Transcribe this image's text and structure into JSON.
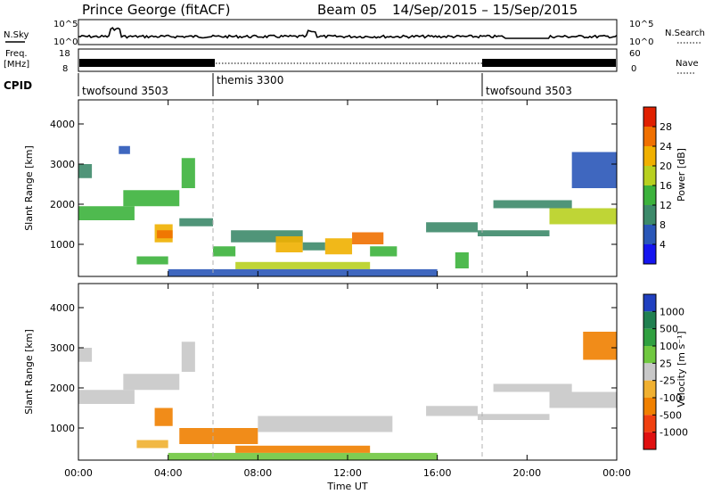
{
  "header": {
    "radar": "Prince George (fitACF)",
    "beam": "Beam 05",
    "date_range": "14/Sep/2015 – 15/Sep/2015"
  },
  "strip": {
    "nsky_label": "N.Sky",
    "nsearch_label": "N.Search",
    "noise_tick_top": "10^5",
    "noise_tick_bottom": "10^0",
    "freq_label_line1": "Freq.",
    "freq_label_line2": "[MHz]",
    "freq_tick_top": "18",
    "freq_tick_bottom": "8",
    "nave_tick_top": "60",
    "nave_tick_bottom": "0",
    "nave_label": "Nave",
    "cpid_label": "CPID",
    "cpid_segments": [
      {
        "name": "twofsound 3503",
        "start_hour": 0,
        "end_hour": 6
      },
      {
        "name": "themis 3300",
        "start_hour": 6,
        "end_hour": 18
      },
      {
        "name": "twofsound 3503",
        "start_hour": 18,
        "end_hour": 24
      }
    ]
  },
  "chart_data": [
    {
      "type": "heatmap",
      "title": "Power",
      "xlabel": "Time UT",
      "ylabel": "Slant Range [km]",
      "xlim": [
        0,
        24
      ],
      "ylim": [
        200,
        4600
      ],
      "x_ticks": [
        "00:00",
        "04:00",
        "08:00",
        "12:00",
        "16:00",
        "20:00",
        "00:00"
      ],
      "y_ticks": [
        1000,
        2000,
        3000,
        4000
      ],
      "colorbar": {
        "label": "Power [dB]",
        "ticks": [
          4,
          8,
          12,
          16,
          20,
          24,
          28
        ],
        "range": [
          0,
          32
        ],
        "colors": [
          "#1515f0",
          "#2a57b8",
          "#3d8a6a",
          "#3cb23c",
          "#b8d020",
          "#f0b000",
          "#f07000",
          "#e02000"
        ]
      },
      "regions": [
        {
          "x0": 0.0,
          "x1": 0.6,
          "y0": 2650,
          "y1": 3000,
          "value": 8
        },
        {
          "x0": 0.0,
          "x1": 2.5,
          "y0": 1600,
          "y1": 1950,
          "value": 14
        },
        {
          "x0": 2.0,
          "x1": 4.5,
          "y0": 1950,
          "y1": 2350,
          "value": 13
        },
        {
          "x0": 1.8,
          "x1": 2.3,
          "y0": 3250,
          "y1": 3450,
          "value": 6
        },
        {
          "x0": 3.4,
          "x1": 4.2,
          "y0": 1050,
          "y1": 1500,
          "value": 20
        },
        {
          "x0": 3.5,
          "x1": 4.2,
          "y0": 1150,
          "y1": 1350,
          "value": 27
        },
        {
          "x0": 2.6,
          "x1": 4.0,
          "y0": 500,
          "y1": 700,
          "value": 13
        },
        {
          "x0": 4.6,
          "x1": 5.2,
          "y0": 2400,
          "y1": 3150,
          "value": 12
        },
        {
          "x0": 4.5,
          "x1": 6.0,
          "y0": 1450,
          "y1": 1650,
          "value": 8
        },
        {
          "x0": 6.0,
          "x1": 7.0,
          "y0": 700,
          "y1": 950,
          "value": 14
        },
        {
          "x0": 6.8,
          "x1": 10.0,
          "y0": 1050,
          "y1": 1350,
          "value": 9
        },
        {
          "x0": 8.8,
          "x1": 10.0,
          "y0": 800,
          "y1": 1200,
          "value": 22
        },
        {
          "x0": 7.0,
          "x1": 13.0,
          "y0": 380,
          "y1": 560,
          "value": 19
        },
        {
          "x0": 10.0,
          "x1": 11.0,
          "y0": 850,
          "y1": 1050,
          "value": 11
        },
        {
          "x0": 11.0,
          "x1": 12.2,
          "y0": 750,
          "y1": 1150,
          "value": 20
        },
        {
          "x0": 12.2,
          "x1": 13.6,
          "y0": 1000,
          "y1": 1300,
          "value": 25
        },
        {
          "x0": 13.0,
          "x1": 14.2,
          "y0": 700,
          "y1": 950,
          "value": 12
        },
        {
          "x0": 15.5,
          "x1": 17.8,
          "y0": 1300,
          "y1": 1550,
          "value": 9
        },
        {
          "x0": 17.8,
          "x1": 21.0,
          "y0": 1200,
          "y1": 1350,
          "value": 8
        },
        {
          "x0": 18.5,
          "x1": 22.0,
          "y0": 1900,
          "y1": 2100,
          "value": 11
        },
        {
          "x0": 21.0,
          "x1": 24.0,
          "y0": 1500,
          "y1": 1900,
          "value": 16
        },
        {
          "x0": 22.0,
          "x1": 24.0,
          "y0": 2400,
          "y1": 3300,
          "value": 6
        },
        {
          "x0": 16.8,
          "x1": 17.4,
          "y0": 400,
          "y1": 800,
          "value": 14
        },
        {
          "x0": 4.0,
          "x1": 16.0,
          "y0": 200,
          "y1": 380,
          "value": 6
        }
      ]
    },
    {
      "type": "heatmap",
      "title": "Velocity",
      "xlabel": "Time UT",
      "ylabel": "Slant Range [km]",
      "xlim": [
        0,
        24
      ],
      "ylim": [
        200,
        4600
      ],
      "x_ticks": [
        "00:00",
        "04:00",
        "08:00",
        "12:00",
        "16:00",
        "20:00",
        "00:00"
      ],
      "y_ticks": [
        1000,
        2000,
        3000,
        4000
      ],
      "colorbar": {
        "label": "Velocity [m s⁻¹]",
        "ticks": [
          "1000",
          "500",
          "100",
          "25",
          "-25",
          "-100",
          "-500",
          "-1000"
        ],
        "colors": [
          "#2040c0",
          "#208050",
          "#30a040",
          "#70c840",
          "#c8c8c8",
          "#f0b030",
          "#f08000",
          "#f04010",
          "#e01010"
        ]
      },
      "regions": [
        {
          "x0": 0.0,
          "x1": 0.6,
          "y0": 2650,
          "y1": 3000,
          "value": "25"
        },
        {
          "x0": 0.0,
          "x1": 2.5,
          "y0": 1600,
          "y1": 1950,
          "value": "25"
        },
        {
          "x0": 2.0,
          "x1": 4.5,
          "y0": 1950,
          "y1": 2350,
          "value": "25"
        },
        {
          "x0": 3.4,
          "x1": 4.2,
          "y0": 1050,
          "y1": 1500,
          "value": "-100"
        },
        {
          "x0": 2.6,
          "x1": 4.0,
          "y0": 500,
          "y1": 700,
          "value": "-25"
        },
        {
          "x0": 4.6,
          "x1": 5.2,
          "y0": 2400,
          "y1": 3150,
          "value": "25"
        },
        {
          "x0": 4.5,
          "x1": 8.0,
          "y0": 600,
          "y1": 1000,
          "value": "-100"
        },
        {
          "x0": 7.0,
          "x1": 13.0,
          "y0": 380,
          "y1": 560,
          "value": "-100"
        },
        {
          "x0": 8.0,
          "x1": 14.0,
          "y0": 900,
          "y1": 1300,
          "value": "25"
        },
        {
          "x0": 4.0,
          "x1": 16.0,
          "y0": 200,
          "y1": 380,
          "value": "100"
        },
        {
          "x0": 15.5,
          "x1": 17.8,
          "y0": 1300,
          "y1": 1550,
          "value": "25"
        },
        {
          "x0": 17.8,
          "x1": 21.0,
          "y0": 1200,
          "y1": 1350,
          "value": "25"
        },
        {
          "x0": 18.5,
          "x1": 22.0,
          "y0": 1900,
          "y1": 2100,
          "value": "25"
        },
        {
          "x0": 21.0,
          "x1": 24.0,
          "y0": 1500,
          "y1": 1900,
          "value": "25"
        },
        {
          "x0": 22.5,
          "x1": 24.0,
          "y0": 2700,
          "y1": 3400,
          "value": "-100"
        }
      ]
    }
  ]
}
